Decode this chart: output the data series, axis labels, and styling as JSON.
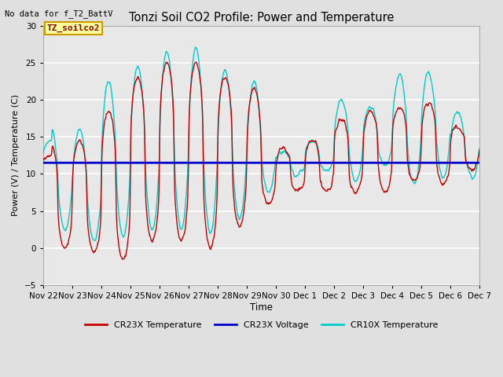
{
  "title": "Tonzi Soil CO2 Profile: Power and Temperature",
  "subtitle": "No data for f_T2_BattV",
  "ylabel": "Power (V) / Temperature (C)",
  "xlabel": "Time",
  "ylim": [
    -5,
    30
  ],
  "yticks": [
    -5,
    0,
    5,
    10,
    15,
    20,
    25,
    30
  ],
  "background_color": "#e0e0e0",
  "plot_bg_color": "#e8e8e8",
  "grid_color": "#ffffff",
  "annotation_box_label": "TZ_soilco2",
  "annotation_box_color": "#ffff99",
  "annotation_box_edge": "#cc9900",
  "x_tick_labels": [
    "Nov 22",
    "Nov 23",
    "Nov 24",
    "Nov 25",
    "Nov 26",
    "Nov 27",
    "Nov 28",
    "Nov 29",
    "Nov 30",
    "Dec 1",
    "Dec 2",
    "Dec 3",
    "Dec 4",
    "Dec 5",
    "Dec 6",
    "Dec 7"
  ],
  "cr23x_color": "#cc0000",
  "voltage_color": "#0000cc",
  "cr10x_color": "#00cccc",
  "voltage_value": 11.5,
  "legend_labels": [
    "CR23X Temperature",
    "CR23X Voltage",
    "CR10X Temperature"
  ]
}
